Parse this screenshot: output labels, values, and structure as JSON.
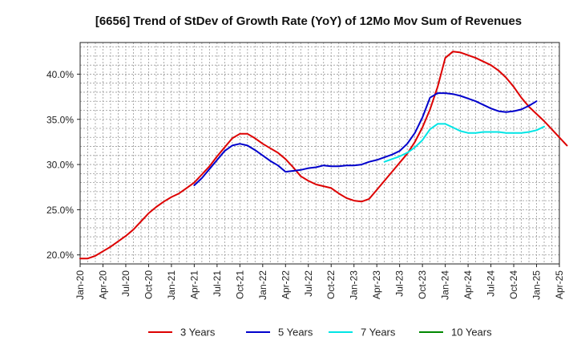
{
  "chart_data": {
    "type": "line",
    "title": "[6656]  Trend of StDev of Growth Rate (YoY) of 12Mo Mov Sum of Revenues",
    "xlabel": "",
    "ylabel": "",
    "x_tick_labels": [
      "Jan-20",
      "Apr-20",
      "Jul-20",
      "Oct-20",
      "Jan-21",
      "Apr-21",
      "Jul-21",
      "Oct-21",
      "Jan-22",
      "Apr-22",
      "Jul-22",
      "Oct-22",
      "Jan-23",
      "Apr-23",
      "Jul-23",
      "Oct-23",
      "Jan-24",
      "Apr-24",
      "Jul-24",
      "Oct-24",
      "Jan-25",
      "Apr-25"
    ],
    "y_ticks": [
      20,
      25,
      30,
      35,
      40
    ],
    "y_tick_labels": [
      "20.0%",
      "25.0%",
      "30.0%",
      "35.0%",
      "40.0%"
    ],
    "ylim": [
      19.0,
      43.5
    ],
    "x_months_range": [
      0,
      63
    ],
    "grid": true,
    "legend_position": "bottom",
    "series": [
      {
        "name": "3 Years",
        "color": "#dd0000",
        "start_month": 0,
        "values": [
          19.6,
          19.6,
          19.9,
          20.4,
          20.9,
          21.5,
          22.1,
          22.8,
          23.7,
          24.6,
          25.3,
          25.9,
          26.4,
          26.8,
          27.4,
          28.0,
          28.9,
          29.8,
          30.9,
          31.9,
          32.9,
          33.4,
          33.4,
          32.9,
          32.3,
          31.8,
          31.3,
          30.6,
          29.7,
          28.7,
          28.2,
          27.8,
          27.6,
          27.4,
          26.8,
          26.3,
          26.0,
          25.9,
          26.2,
          27.2,
          28.2,
          29.2,
          30.2,
          31.2,
          32.5,
          34.1,
          36.1,
          38.6,
          41.8,
          42.5,
          42.4,
          42.1,
          41.8,
          41.4,
          41.0,
          40.4,
          39.6,
          38.6,
          37.4,
          36.4,
          35.6,
          34.8,
          33.9,
          33.0,
          32.1
        ]
      },
      {
        "name": "5 Years",
        "color": "#0000cc",
        "start_month": 15,
        "values": [
          27.7,
          28.5,
          29.5,
          30.5,
          31.5,
          32.1,
          32.3,
          32.1,
          31.6,
          31.0,
          30.4,
          29.9,
          29.2,
          29.3,
          29.4,
          29.6,
          29.7,
          29.9,
          29.8,
          29.8,
          29.9,
          29.9,
          30.0,
          30.3,
          30.5,
          30.8,
          31.1,
          31.5,
          32.3,
          33.5,
          35.2,
          37.4,
          37.9,
          37.9,
          37.8,
          37.6,
          37.3,
          37.0,
          36.6,
          36.2,
          35.9,
          35.8,
          35.9,
          36.1,
          36.5,
          37.0
        ]
      },
      {
        "name": "7 Years",
        "color": "#00e5e5",
        "start_month": 40,
        "values": [
          30.3,
          30.6,
          30.9,
          31.3,
          31.9,
          32.7,
          33.9,
          34.5,
          34.5,
          34.1,
          33.7,
          33.5,
          33.5,
          33.6,
          33.6,
          33.6,
          33.5,
          33.5,
          33.5,
          33.6,
          33.8,
          34.2
        ]
      },
      {
        "name": "10 Years",
        "color": "#008800",
        "start_month": 0,
        "values": []
      }
    ]
  }
}
